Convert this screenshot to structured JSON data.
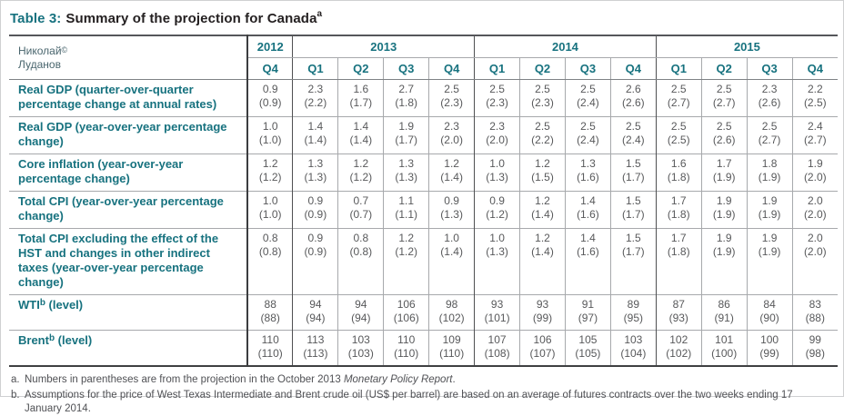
{
  "colors": {
    "accent_teal": "#17727f",
    "title_black": "#231f20",
    "data_gray": "#58595b",
    "grid_light": "#a7a9ac",
    "grid_dark": "#3c3d3f"
  },
  "title": {
    "prefix": "Table 3:",
    "text": "Summary of the projection for Canada",
    "sup": "a"
  },
  "watermark": {
    "line1": "Николай",
    "sup": "©",
    "line2": "Луданов"
  },
  "table": {
    "year_groups": [
      {
        "label": "2012",
        "quarters": [
          "Q4"
        ]
      },
      {
        "label": "2013",
        "quarters": [
          "Q1",
          "Q2",
          "Q3",
          "Q4"
        ]
      },
      {
        "label": "2014",
        "quarters": [
          "Q1",
          "Q2",
          "Q3",
          "Q4"
        ]
      },
      {
        "label": "2015",
        "quarters": [
          "Q1",
          "Q2",
          "Q3",
          "Q4"
        ]
      }
    ],
    "rows": [
      {
        "label": "Real GDP (quarter-over-quarter percentage change at annual rates)",
        "values": [
          "0.9",
          "2.3",
          "1.6",
          "2.7",
          "2.5",
          "2.5",
          "2.5",
          "2.5",
          "2.6",
          "2.5",
          "2.5",
          "2.3",
          "2.2"
        ],
        "parens": [
          "(0.9)",
          "(2.2)",
          "(1.7)",
          "(1.8)",
          "(2.3)",
          "(2.3)",
          "(2.3)",
          "(2.4)",
          "(2.6)",
          "(2.7)",
          "(2.7)",
          "(2.6)",
          "(2.5)"
        ]
      },
      {
        "label": "Real GDP (year-over-year percentage change)",
        "values": [
          "1.0",
          "1.4",
          "1.4",
          "1.9",
          "2.3",
          "2.3",
          "2.5",
          "2.5",
          "2.5",
          "2.5",
          "2.5",
          "2.5",
          "2.4"
        ],
        "parens": [
          "(1.0)",
          "(1.4)",
          "(1.4)",
          "(1.7)",
          "(2.0)",
          "(2.0)",
          "(2.2)",
          "(2.4)",
          "(2.4)",
          "(2.5)",
          "(2.6)",
          "(2.7)",
          "(2.7)"
        ]
      },
      {
        "label": "Core inflation (year-over-year percentage change)",
        "values": [
          "1.2",
          "1.3",
          "1.2",
          "1.3",
          "1.2",
          "1.0",
          "1.2",
          "1.3",
          "1.5",
          "1.6",
          "1.7",
          "1.8",
          "1.9"
        ],
        "parens": [
          "(1.2)",
          "(1.3)",
          "(1.2)",
          "(1.3)",
          "(1.4)",
          "(1.3)",
          "(1.5)",
          "(1.6)",
          "(1.7)",
          "(1.8)",
          "(1.9)",
          "(1.9)",
          "(2.0)"
        ]
      },
      {
        "label": "Total CPI (year-over-year percentage change)",
        "values": [
          "1.0",
          "0.9",
          "0.7",
          "1.1",
          "0.9",
          "0.9",
          "1.2",
          "1.4",
          "1.5",
          "1.7",
          "1.9",
          "1.9",
          "2.0"
        ],
        "parens": [
          "(1.0)",
          "(0.9)",
          "(0.7)",
          "(1.1)",
          "(1.3)",
          "(1.2)",
          "(1.4)",
          "(1.6)",
          "(1.7)",
          "(1.8)",
          "(1.9)",
          "(1.9)",
          "(2.0)"
        ]
      },
      {
        "label": "Total CPI excluding the effect of the HST and changes in other indirect taxes (year-over-year percentage change)",
        "values": [
          "0.8",
          "0.9",
          "0.8",
          "1.2",
          "1.0",
          "1.0",
          "1.2",
          "1.4",
          "1.5",
          "1.7",
          "1.9",
          "1.9",
          "2.0"
        ],
        "parens": [
          "(0.8)",
          "(0.9)",
          "(0.8)",
          "(1.2)",
          "(1.4)",
          "(1.3)",
          "(1.4)",
          "(1.6)",
          "(1.7)",
          "(1.8)",
          "(1.9)",
          "(1.9)",
          "(2.0)"
        ]
      },
      {
        "label": "WTI",
        "label_sup": "b",
        "label_suffix": " (level)",
        "values": [
          "88",
          "94",
          "94",
          "106",
          "98",
          "93",
          "93",
          "91",
          "89",
          "87",
          "86",
          "84",
          "83"
        ],
        "parens": [
          "(88)",
          "(94)",
          "(94)",
          "(106)",
          "(102)",
          "(101)",
          "(99)",
          "(97)",
          "(95)",
          "(93)",
          "(91)",
          "(90)",
          "(88)"
        ]
      },
      {
        "label": "Brent",
        "label_sup": "b",
        "label_suffix": " (level)",
        "values": [
          "110",
          "113",
          "103",
          "110",
          "109",
          "107",
          "106",
          "105",
          "103",
          "102",
          "101",
          "100",
          "99"
        ],
        "parens": [
          "(110)",
          "(113)",
          "(103)",
          "(110)",
          "(110)",
          "(108)",
          "(107)",
          "(105)",
          "(104)",
          "(102)",
          "(100)",
          "(99)",
          "(98)"
        ]
      }
    ]
  },
  "footnotes": [
    {
      "marker": "a.",
      "text_before": "Numbers in parentheses are from the projection in the October 2013 ",
      "italic": "Monetary Policy Report",
      "text_after": "."
    },
    {
      "marker": "b.",
      "text": "Assumptions for the price of West Texas Intermediate and Brent crude oil (US$ per barrel) are based on an average of futures contracts over the two weeks ending 17 January 2014."
    }
  ]
}
